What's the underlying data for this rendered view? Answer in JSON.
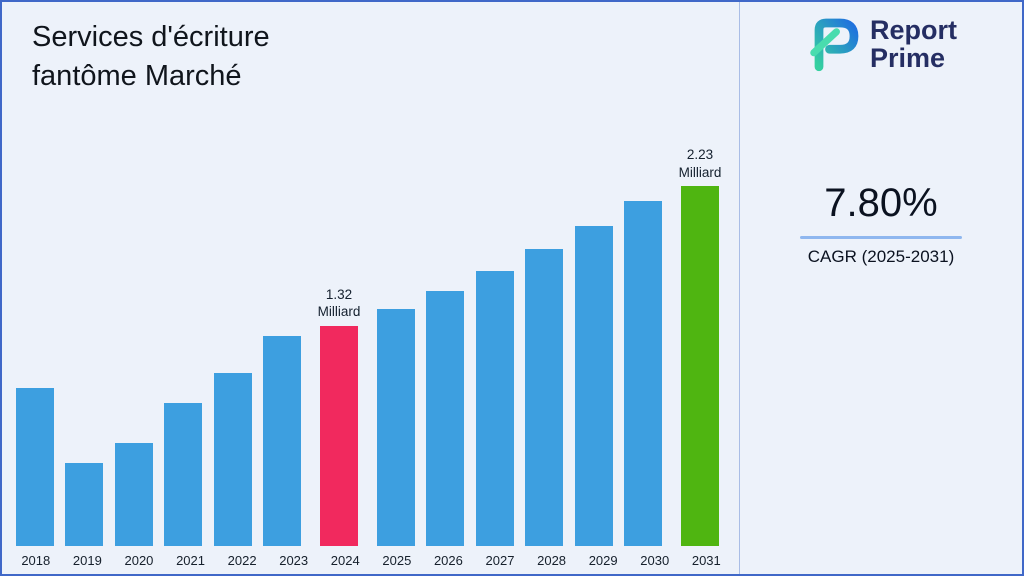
{
  "title": "Services d'écriture fantôme Marché",
  "logo": {
    "line1": "Report",
    "line2": "Prime"
  },
  "stats": {
    "cagr_value": "7.80%",
    "cagr_label": "CAGR (2025-2031)"
  },
  "chart_data": {
    "type": "bar",
    "title": "Services d'écriture fantôme Marché",
    "xlabel": "",
    "ylabel": "Milliard",
    "ylim": [
      0,
      2.4
    ],
    "grid": false,
    "legend": "none",
    "categories": [
      "2018",
      "2019",
      "2020",
      "2021",
      "2022",
      "2023",
      "2024",
      "2025",
      "2026",
      "2027",
      "2028",
      "2029",
      "2030",
      "2031"
    ],
    "values": [
      0.95,
      0.5,
      0.62,
      0.86,
      1.04,
      1.26,
      1.32,
      1.42,
      1.53,
      1.65,
      1.78,
      1.92,
      2.07,
      2.23
    ],
    "colors": {
      "default": "#3d9fe0"
    },
    "highlights": [
      {
        "index": 6,
        "category": "2024",
        "color": "#f1295e",
        "label": "1.32 Milliard"
      },
      {
        "index": 13,
        "category": "2031",
        "color": "#4fb511",
        "label": "2.23 Milliard"
      }
    ]
  }
}
